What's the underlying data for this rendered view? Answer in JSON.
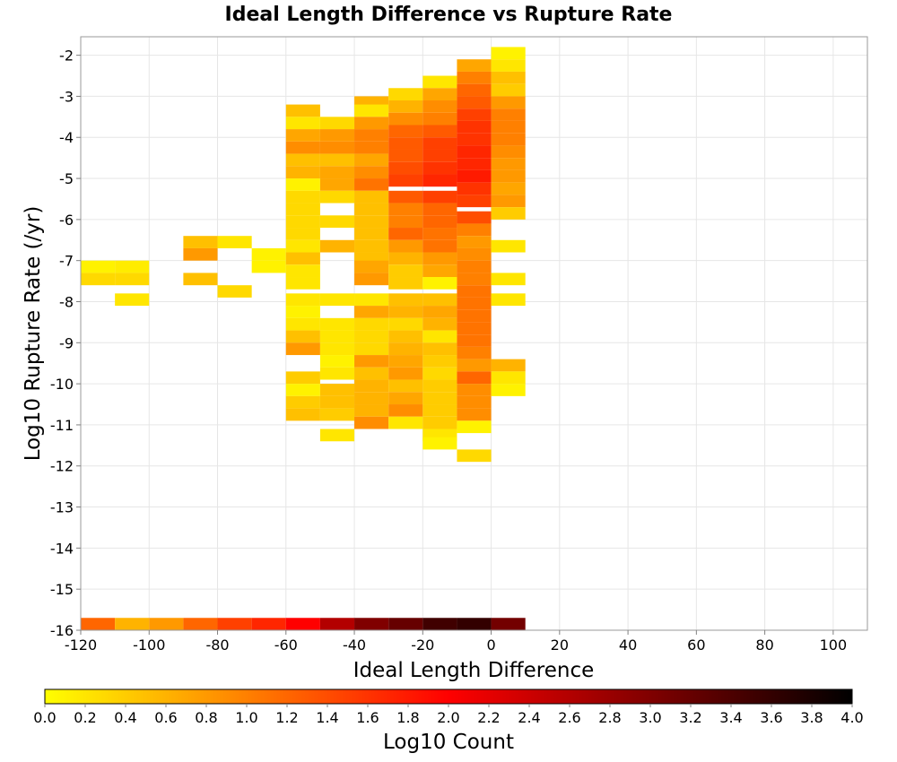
{
  "chart_data": {
    "type": "heatmap",
    "title": "Ideal Length Difference vs Rupture Rate",
    "xlabel": "Ideal Length Difference",
    "ylabel": "Log10 Rupture Rate (/yr)",
    "xlim": [
      -120,
      110
    ],
    "ylim": [
      -16,
      -1.55
    ],
    "x_ticks": [
      -120,
      -100,
      -80,
      -60,
      -40,
      -20,
      0,
      20,
      40,
      60,
      80,
      100
    ],
    "y_ticks": [
      -2,
      -3,
      -4,
      -5,
      -6,
      -7,
      -8,
      -9,
      -10,
      -11,
      -12,
      -13,
      -14,
      -15,
      -16
    ],
    "bin_width_x": 10,
    "bin_height_y": 0.3,
    "grid": true,
    "colorscale": {
      "label": "Log10 Count",
      "min": 0.0,
      "max": 4.0,
      "ticks": [
        "0.0",
        "0.2",
        "0.4",
        "0.6",
        "0.8",
        "1.0",
        "1.2",
        "1.4",
        "1.6",
        "1.8",
        "2.0",
        "2.2",
        "2.4",
        "2.6",
        "2.8",
        "3.0",
        "3.2",
        "3.4",
        "3.6",
        "3.8",
        "4.0"
      ],
      "colors": [
        "#ffff00",
        "#ff8000",
        "#ff0000",
        "#800000",
        "#000000"
      ]
    },
    "cells": [
      [
        -120,
        -7.3,
        0.1
      ],
      [
        -120,
        -7.6,
        0.3
      ],
      [
        -110,
        -7.3,
        0.15
      ],
      [
        -110,
        -7.6,
        0.3
      ],
      [
        -110,
        -8.1,
        0.2
      ],
      [
        -90,
        -6.7,
        0.5
      ],
      [
        -90,
        -7.0,
        0.8
      ],
      [
        -90,
        -7.6,
        0.5
      ],
      [
        -80,
        -6.7,
        0.2
      ],
      [
        -80,
        -7.9,
        0.3
      ],
      [
        -70,
        -7.0,
        0.1
      ],
      [
        -70,
        -7.3,
        0.1
      ],
      [
        -60,
        -3.5,
        0.5
      ],
      [
        -60,
        -3.8,
        0.2
      ],
      [
        -60,
        -4.1,
        0.7
      ],
      [
        -60,
        -4.4,
        0.9
      ],
      [
        -60,
        -4.7,
        0.5
      ],
      [
        -60,
        -5.0,
        0.6
      ],
      [
        -60,
        -5.3,
        0.1
      ],
      [
        -60,
        -5.6,
        0.3
      ],
      [
        -60,
        -5.9,
        0.3
      ],
      [
        -60,
        -6.2,
        0.3
      ],
      [
        -60,
        -6.5,
        0.3
      ],
      [
        -60,
        -6.8,
        0.2
      ],
      [
        -60,
        -7.1,
        0.5
      ],
      [
        -60,
        -7.4,
        0.2
      ],
      [
        -60,
        -7.7,
        0.2
      ],
      [
        -60,
        -8.1,
        0.2
      ],
      [
        -60,
        -8.4,
        0.1
      ],
      [
        -60,
        -8.7,
        0.2
      ],
      [
        -60,
        -9.0,
        0.5
      ],
      [
        -60,
        -9.3,
        0.8
      ],
      [
        -60,
        -10.0,
        0.4
      ],
      [
        -60,
        -10.3,
        0.1
      ],
      [
        -60,
        -10.6,
        0.4
      ],
      [
        -60,
        -10.9,
        0.5
      ],
      [
        -50,
        -3.8,
        0.3
      ],
      [
        -50,
        -4.1,
        0.8
      ],
      [
        -50,
        -4.4,
        0.9
      ],
      [
        -50,
        -4.7,
        0.5
      ],
      [
        -50,
        -5.0,
        0.7
      ],
      [
        -50,
        -5.3,
        0.7
      ],
      [
        -50,
        -5.6,
        0.3
      ],
      [
        -50,
        -6.2,
        0.3
      ],
      [
        -50,
        -6.8,
        0.6
      ],
      [
        -50,
        -8.1,
        0.2
      ],
      [
        -50,
        -8.7,
        0.2
      ],
      [
        -50,
        -9.0,
        0.2
      ],
      [
        -50,
        -9.3,
        0.2
      ],
      [
        -50,
        -9.6,
        0.1
      ],
      [
        -50,
        -9.9,
        0.2
      ],
      [
        -50,
        -10.3,
        0.5
      ],
      [
        -50,
        -10.6,
        0.5
      ],
      [
        -50,
        -10.9,
        0.4
      ],
      [
        -50,
        -11.4,
        0.2
      ],
      [
        -40,
        -3.3,
        0.6
      ],
      [
        -40,
        -3.5,
        0.2
      ],
      [
        -40,
        -3.8,
        0.8
      ],
      [
        -40,
        -4.1,
        1.0
      ],
      [
        -40,
        -4.4,
        1.0
      ],
      [
        -40,
        -4.7,
        0.7
      ],
      [
        -40,
        -5.0,
        0.9
      ],
      [
        -40,
        -5.3,
        1.1
      ],
      [
        -40,
        -5.6,
        0.5
      ],
      [
        -40,
        -5.9,
        0.5
      ],
      [
        -40,
        -6.2,
        0.5
      ],
      [
        -40,
        -6.5,
        0.5
      ],
      [
        -40,
        -6.8,
        0.5
      ],
      [
        -40,
        -7.1,
        0.5
      ],
      [
        -40,
        -7.3,
        0.7
      ],
      [
        -40,
        -7.6,
        0.8
      ],
      [
        -40,
        -8.1,
        0.2
      ],
      [
        -40,
        -8.4,
        0.7
      ],
      [
        -40,
        -8.7,
        0.3
      ],
      [
        -40,
        -9.0,
        0.3
      ],
      [
        -40,
        -9.3,
        0.3
      ],
      [
        -40,
        -9.6,
        0.8
      ],
      [
        -40,
        -9.9,
        0.5
      ],
      [
        -40,
        -10.2,
        0.6
      ],
      [
        -40,
        -10.5,
        0.6
      ],
      [
        -40,
        -10.8,
        0.6
      ],
      [
        -40,
        -11.1,
        0.9
      ],
      [
        -30,
        -3.1,
        0.3
      ],
      [
        -30,
        -3.4,
        0.6
      ],
      [
        -30,
        -3.7,
        0.9
      ],
      [
        -30,
        -4.0,
        1.2
      ],
      [
        -30,
        -4.3,
        1.3
      ],
      [
        -30,
        -4.6,
        1.3
      ],
      [
        -30,
        -4.9,
        1.4
      ],
      [
        -30,
        -5.2,
        1.5
      ],
      [
        -30,
        -5.6,
        1.3
      ],
      [
        -30,
        -5.9,
        1.0
      ],
      [
        -30,
        -6.2,
        1.0
      ],
      [
        -30,
        -6.5,
        1.2
      ],
      [
        -30,
        -6.8,
        0.8
      ],
      [
        -30,
        -7.1,
        0.6
      ],
      [
        -30,
        -7.4,
        0.4
      ],
      [
        -30,
        -7.7,
        0.4
      ],
      [
        -30,
        -8.1,
        0.5
      ],
      [
        -30,
        -8.4,
        0.6
      ],
      [
        -30,
        -8.7,
        0.3
      ],
      [
        -30,
        -9.0,
        0.5
      ],
      [
        -30,
        -9.3,
        0.6
      ],
      [
        -30,
        -9.6,
        0.7
      ],
      [
        -30,
        -9.9,
        0.8
      ],
      [
        -30,
        -10.2,
        0.5
      ],
      [
        -30,
        -10.5,
        0.7
      ],
      [
        -30,
        -10.8,
        0.9
      ],
      [
        -30,
        -11.1,
        0.2
      ],
      [
        -20,
        -2.8,
        0.2
      ],
      [
        -20,
        -3.1,
        0.7
      ],
      [
        -20,
        -3.4,
        0.9
      ],
      [
        -20,
        -3.7,
        1.0
      ],
      [
        -20,
        -4.0,
        1.3
      ],
      [
        -20,
        -4.3,
        1.5
      ],
      [
        -20,
        -4.6,
        1.5
      ],
      [
        -20,
        -4.9,
        1.6
      ],
      [
        -20,
        -5.2,
        1.7
      ],
      [
        -20,
        -5.6,
        1.5
      ],
      [
        -20,
        -5.9,
        1.2
      ],
      [
        -20,
        -6.2,
        1.2
      ],
      [
        -20,
        -6.5,
        1.1
      ],
      [
        -20,
        -6.8,
        1.1
      ],
      [
        -20,
        -7.1,
        0.8
      ],
      [
        -20,
        -7.4,
        0.7
      ],
      [
        -20,
        -7.7,
        0.1
      ],
      [
        -20,
        -8.1,
        0.5
      ],
      [
        -20,
        -8.4,
        0.7
      ],
      [
        -20,
        -8.7,
        0.6
      ],
      [
        -20,
        -9.0,
        0.2
      ],
      [
        -20,
        -9.3,
        0.5
      ],
      [
        -20,
        -9.6,
        0.4
      ],
      [
        -20,
        -9.9,
        0.3
      ],
      [
        -20,
        -10.2,
        0.4
      ],
      [
        -20,
        -10.5,
        0.4
      ],
      [
        -20,
        -10.8,
        0.4
      ],
      [
        -20,
        -11.1,
        0.4
      ],
      [
        -20,
        -11.4,
        0.2
      ],
      [
        -20,
        -11.6,
        0.1
      ],
      [
        -10,
        -2.4,
        0.7
      ],
      [
        -10,
        -2.7,
        1.0
      ],
      [
        -10,
        -3.0,
        1.2
      ],
      [
        -10,
        -3.3,
        1.3
      ],
      [
        -10,
        -3.6,
        1.5
      ],
      [
        -10,
        -3.9,
        1.6
      ],
      [
        -10,
        -4.2,
        1.6
      ],
      [
        -10,
        -4.5,
        1.7
      ],
      [
        -10,
        -4.8,
        1.7
      ],
      [
        -10,
        -5.1,
        1.8
      ],
      [
        -10,
        -5.4,
        1.6
      ],
      [
        -10,
        -5.7,
        1.5
      ],
      [
        -10,
        -6.1,
        1.4
      ],
      [
        -10,
        -6.4,
        1.0
      ],
      [
        -10,
        -6.7,
        0.8
      ],
      [
        -10,
        -7.0,
        0.9
      ],
      [
        -10,
        -7.3,
        1.0
      ],
      [
        -10,
        -7.6,
        1.0
      ],
      [
        -10,
        -7.9,
        1.1
      ],
      [
        -10,
        -8.2,
        1.1
      ],
      [
        -10,
        -8.5,
        1.1
      ],
      [
        -10,
        -8.8,
        1.1
      ],
      [
        -10,
        -9.1,
        1.1
      ],
      [
        -10,
        -9.4,
        1.0
      ],
      [
        -10,
        -9.7,
        0.8
      ],
      [
        -10,
        -10.0,
        1.2
      ],
      [
        -10,
        -10.3,
        0.9
      ],
      [
        -10,
        -10.6,
        0.9
      ],
      [
        -10,
        -10.9,
        0.9
      ],
      [
        -10,
        -11.2,
        0.1
      ],
      [
        -10,
        -11.9,
        0.3
      ],
      [
        0,
        -2.1,
        0.1
      ],
      [
        0,
        -2.4,
        0.2
      ],
      [
        0,
        -2.7,
        0.5
      ],
      [
        0,
        -3.0,
        0.4
      ],
      [
        0,
        -3.3,
        0.8
      ],
      [
        0,
        -3.6,
        1.0
      ],
      [
        0,
        -3.9,
        1.0
      ],
      [
        0,
        -4.2,
        1.0
      ],
      [
        0,
        -4.5,
        0.9
      ],
      [
        0,
        -4.8,
        0.8
      ],
      [
        0,
        -5.1,
        0.8
      ],
      [
        0,
        -5.4,
        0.7
      ],
      [
        0,
        -5.7,
        0.8
      ],
      [
        0,
        -6.0,
        0.4
      ],
      [
        0,
        -6.8,
        0.2
      ],
      [
        0,
        -7.6,
        0.2
      ],
      [
        0,
        -8.1,
        0.2
      ],
      [
        0,
        -9.7,
        0.6
      ],
      [
        0,
        -10.0,
        0.2
      ],
      [
        0,
        -10.3,
        0.1
      ],
      [
        -120,
        -16,
        1.2
      ],
      [
        -110,
        -16,
        0.6
      ],
      [
        -100,
        -16,
        0.8
      ],
      [
        -90,
        -16,
        1.2
      ],
      [
        -80,
        -16,
        1.5
      ],
      [
        -70,
        -16,
        1.7
      ],
      [
        -60,
        -16,
        2.0
      ],
      [
        -50,
        -16,
        2.6
      ],
      [
        -40,
        -16,
        3.0
      ],
      [
        -30,
        -16,
        3.2
      ],
      [
        -20,
        -16,
        3.5
      ],
      [
        -10,
        -16,
        3.6
      ],
      [
        0,
        -16,
        3.1
      ]
    ]
  }
}
